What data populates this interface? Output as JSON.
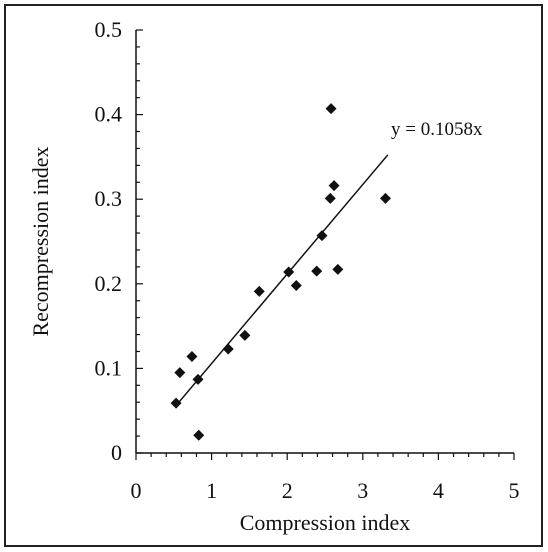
{
  "chart_data": {
    "type": "scatter",
    "title": "",
    "xlabel": "Compression index",
    "ylabel": "Recompression index",
    "xlim": [
      0,
      5
    ],
    "ylim": [
      0,
      0.5
    ],
    "x_ticks": [
      "0",
      "1",
      "2",
      "3",
      "4",
      "5"
    ],
    "y_ticks": [
      "0",
      "0.1",
      "0.2",
      "0.3",
      "0.4",
      "0.5"
    ],
    "grid": false,
    "legend": "none",
    "marker": "diamond",
    "marker_color": "#111111",
    "points": [
      {
        "x": 0.53,
        "y": 0.059
      },
      {
        "x": 0.58,
        "y": 0.095
      },
      {
        "x": 0.74,
        "y": 0.114
      },
      {
        "x": 0.82,
        "y": 0.087
      },
      {
        "x": 0.83,
        "y": 0.021
      },
      {
        "x": 1.22,
        "y": 0.123
      },
      {
        "x": 1.44,
        "y": 0.139
      },
      {
        "x": 1.63,
        "y": 0.191
      },
      {
        "x": 2.02,
        "y": 0.214
      },
      {
        "x": 2.12,
        "y": 0.198
      },
      {
        "x": 2.39,
        "y": 0.215
      },
      {
        "x": 2.46,
        "y": 0.257
      },
      {
        "x": 2.57,
        "y": 0.301
      },
      {
        "x": 2.58,
        "y": 0.407
      },
      {
        "x": 2.62,
        "y": 0.316
      },
      {
        "x": 2.67,
        "y": 0.217
      },
      {
        "x": 3.3,
        "y": 0.301
      }
    ],
    "trendline": {
      "slope": 0.1058,
      "x_range": [
        0.53,
        3.33
      ],
      "label": "y = 0.1058x"
    }
  }
}
